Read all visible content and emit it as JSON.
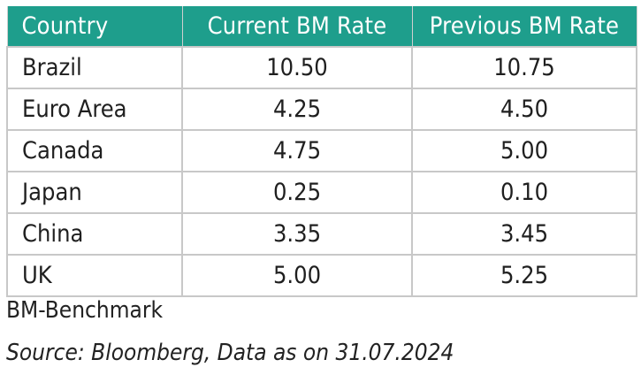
{
  "table": {
    "headers": [
      "Country",
      "Current BM Rate",
      "Previous BM Rate"
    ],
    "rows": [
      [
        "Brazil",
        "10.50",
        "10.75"
      ],
      [
        "Euro Area",
        "4.25",
        "4.50"
      ],
      [
        "Canada",
        "4.75",
        "5.00"
      ],
      [
        "Japan",
        "0.25",
        "0.10"
      ],
      [
        "China",
        "3.35",
        "3.45"
      ],
      [
        "UK",
        "5.00",
        "5.25"
      ]
    ]
  },
  "footnote": "BM-Benchmark",
  "source": "Source: Bloomberg, Data as on 31.07.2024",
  "colors": {
    "header_bg": "#1e9e8c",
    "header_text": "#ffffff",
    "grid": "#c8c8c8"
  }
}
